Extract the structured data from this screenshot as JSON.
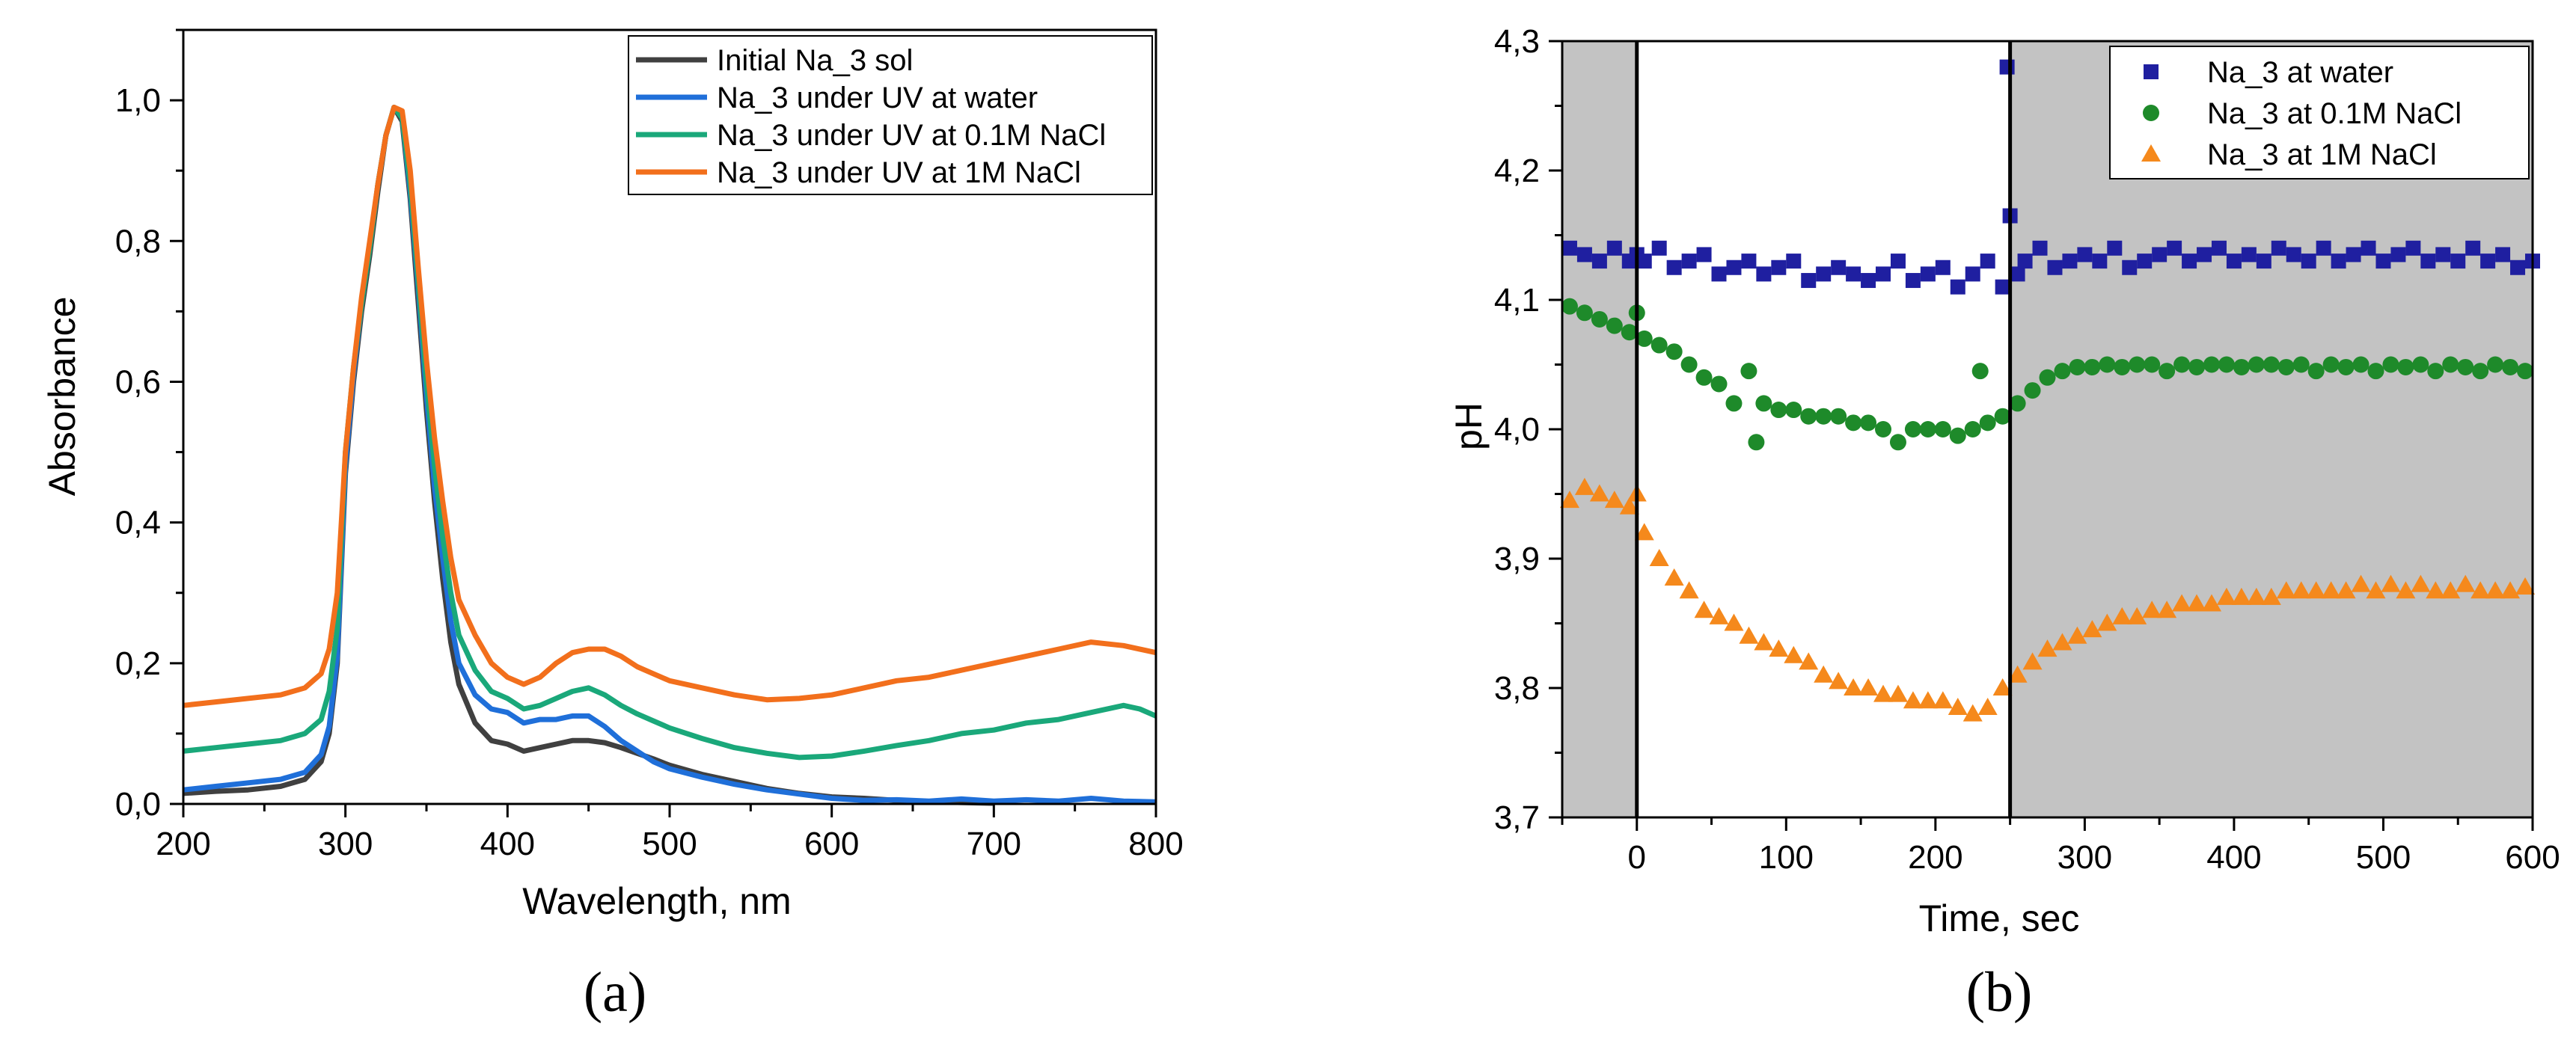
{
  "chart_data": [
    {
      "type": "line",
      "panel_label": "(a)",
      "xlabel": "Wavelength, nm",
      "ylabel": "Absorbance",
      "xlim": [
        200,
        800
      ],
      "ylim": [
        0,
        1.1
      ],
      "xticks": [
        "200",
        "300",
        "400",
        "500",
        "600",
        "700",
        "800"
      ],
      "yticks": [
        "0,0",
        "0,2",
        "0,4",
        "0,6",
        "0,8",
        "1,0"
      ],
      "legend_position": "top-right",
      "series": [
        {
          "name": "Initial Na_3 sol",
          "color": "#404040",
          "x": [
            200,
            220,
            240,
            260,
            275,
            285,
            290,
            295,
            300,
            305,
            310,
            315,
            320,
            325,
            330,
            335,
            340,
            345,
            350,
            355,
            360,
            365,
            370,
            380,
            390,
            400,
            410,
            420,
            430,
            440,
            450,
            460,
            470,
            480,
            490,
            500,
            520,
            540,
            560,
            580,
            600,
            620,
            640,
            660,
            680,
            700
          ],
          "y": [
            0.015,
            0.018,
            0.02,
            0.025,
            0.035,
            0.06,
            0.1,
            0.2,
            0.47,
            0.6,
            0.7,
            0.78,
            0.87,
            0.95,
            0.99,
            0.97,
            0.86,
            0.71,
            0.56,
            0.43,
            0.32,
            0.23,
            0.17,
            0.115,
            0.09,
            0.085,
            0.075,
            0.08,
            0.085,
            0.09,
            0.09,
            0.087,
            0.08,
            0.072,
            0.064,
            0.055,
            0.042,
            0.032,
            0.022,
            0.015,
            0.01,
            0.008,
            0.005,
            0.003,
            0.002,
            0.001
          ]
        },
        {
          "name": "Na_3 under UV at water",
          "color": "#1f6fd9",
          "x": [
            200,
            220,
            240,
            260,
            275,
            285,
            290,
            295,
            300,
            305,
            310,
            315,
            320,
            325,
            330,
            335,
            340,
            345,
            350,
            355,
            360,
            365,
            370,
            380,
            390,
            400,
            410,
            420,
            430,
            440,
            450,
            460,
            470,
            480,
            490,
            500,
            520,
            540,
            560,
            580,
            600,
            620,
            640,
            660,
            680,
            700,
            720,
            740,
            760,
            780,
            800
          ],
          "y": [
            0.02,
            0.025,
            0.03,
            0.035,
            0.045,
            0.07,
            0.11,
            0.21,
            0.48,
            0.61,
            0.71,
            0.79,
            0.88,
            0.95,
            0.99,
            0.975,
            0.87,
            0.73,
            0.58,
            0.45,
            0.35,
            0.26,
            0.2,
            0.155,
            0.135,
            0.13,
            0.115,
            0.12,
            0.12,
            0.125,
            0.125,
            0.11,
            0.09,
            0.075,
            0.06,
            0.05,
            0.038,
            0.028,
            0.02,
            0.014,
            0.008,
            0.005,
            0.006,
            0.004,
            0.007,
            0.004,
            0.006,
            0.004,
            0.008,
            0.004,
            0.003
          ]
        },
        {
          "name": "Na_3 under UV at 0.1M NaCl",
          "color": "#1aa87a",
          "x": [
            200,
            220,
            240,
            260,
            275,
            285,
            290,
            295,
            300,
            305,
            310,
            315,
            320,
            325,
            330,
            335,
            340,
            345,
            350,
            355,
            360,
            365,
            370,
            380,
            390,
            400,
            410,
            420,
            430,
            440,
            450,
            460,
            470,
            480,
            490,
            500,
            520,
            540,
            560,
            580,
            600,
            620,
            640,
            660,
            680,
            700,
            720,
            740,
            760,
            780,
            790,
            800
          ],
          "y": [
            0.075,
            0.08,
            0.085,
            0.09,
            0.1,
            0.12,
            0.16,
            0.25,
            0.5,
            0.62,
            0.71,
            0.79,
            0.88,
            0.95,
            0.99,
            0.975,
            0.88,
            0.74,
            0.6,
            0.48,
            0.38,
            0.3,
            0.24,
            0.19,
            0.16,
            0.15,
            0.135,
            0.14,
            0.15,
            0.16,
            0.165,
            0.155,
            0.14,
            0.128,
            0.118,
            0.108,
            0.093,
            0.08,
            0.072,
            0.066,
            0.068,
            0.075,
            0.083,
            0.09,
            0.1,
            0.105,
            0.115,
            0.12,
            0.13,
            0.14,
            0.135,
            0.125
          ]
        },
        {
          "name": "Na_3 under UV at 1M NaCl",
          "color": "#f26f1c",
          "x": [
            200,
            220,
            240,
            260,
            275,
            285,
            290,
            295,
            300,
            305,
            310,
            315,
            320,
            325,
            330,
            335,
            340,
            345,
            350,
            355,
            360,
            365,
            370,
            380,
            390,
            400,
            410,
            420,
            430,
            440,
            450,
            460,
            470,
            480,
            490,
            500,
            520,
            540,
            560,
            580,
            600,
            620,
            640,
            660,
            680,
            700,
            720,
            740,
            760,
            780,
            800
          ],
          "y": [
            0.14,
            0.145,
            0.15,
            0.155,
            0.165,
            0.185,
            0.22,
            0.3,
            0.5,
            0.62,
            0.72,
            0.8,
            0.88,
            0.95,
            0.99,
            0.985,
            0.9,
            0.76,
            0.63,
            0.52,
            0.43,
            0.35,
            0.29,
            0.24,
            0.2,
            0.18,
            0.17,
            0.18,
            0.2,
            0.215,
            0.22,
            0.22,
            0.21,
            0.195,
            0.185,
            0.175,
            0.165,
            0.155,
            0.148,
            0.15,
            0.155,
            0.165,
            0.175,
            0.18,
            0.19,
            0.2,
            0.21,
            0.22,
            0.23,
            0.225,
            0.215
          ]
        }
      ]
    },
    {
      "type": "scatter",
      "panel_label": "(b)",
      "xlabel": "Time, sec",
      "ylabel": "pH",
      "xlim": [
        -50,
        600
      ],
      "ylim": [
        3.7,
        4.3
      ],
      "xticks": [
        "0",
        "100",
        "200",
        "300",
        "400",
        "500",
        "600"
      ],
      "yticks": [
        "3,7",
        "3,8",
        "3,9",
        "4,0",
        "4,1",
        "4,2",
        "4,3"
      ],
      "legend_position": "top-right",
      "shaded_regions": [
        [
          -50,
          0
        ],
        [
          250,
          600
        ]
      ],
      "vertical_lines": [
        0,
        250
      ],
      "series": [
        {
          "name": "Na_3 at water",
          "color": "#1f1fa0",
          "marker": "square",
          "x": [
            -45,
            -35,
            -25,
            -15,
            -5,
            0,
            5,
            15,
            25,
            35,
            45,
            55,
            65,
            75,
            85,
            95,
            105,
            115,
            125,
            135,
            145,
            155,
            165,
            175,
            185,
            195,
            205,
            215,
            225,
            235,
            245,
            248,
            250,
            255,
            260,
            270,
            280,
            290,
            300,
            310,
            320,
            330,
            340,
            350,
            360,
            370,
            380,
            390,
            400,
            410,
            420,
            430,
            440,
            450,
            460,
            470,
            480,
            490,
            500,
            510,
            520,
            530,
            540,
            550,
            560,
            570,
            580,
            590,
            600
          ],
          "y": [
            4.14,
            4.135,
            4.13,
            4.14,
            4.13,
            4.135,
            4.13,
            4.14,
            4.125,
            4.13,
            4.135,
            4.12,
            4.125,
            4.13,
            4.12,
            4.125,
            4.13,
            4.115,
            4.12,
            4.125,
            4.12,
            4.115,
            4.12,
            4.13,
            4.115,
            4.12,
            4.125,
            4.11,
            4.12,
            4.13,
            4.11,
            4.28,
            4.165,
            4.12,
            4.13,
            4.14,
            4.125,
            4.13,
            4.135,
            4.13,
            4.14,
            4.125,
            4.13,
            4.135,
            4.14,
            4.13,
            4.135,
            4.14,
            4.13,
            4.135,
            4.13,
            4.14,
            4.135,
            4.13,
            4.14,
            4.13,
            4.135,
            4.14,
            4.13,
            4.135,
            4.14,
            4.13,
            4.135,
            4.13,
            4.14,
            4.13,
            4.135,
            4.125,
            4.13
          ]
        },
        {
          "name": "Na_3 at 0.1M NaCl",
          "color": "#1e8a2a",
          "marker": "circle",
          "x": [
            -45,
            -35,
            -25,
            -15,
            -5,
            0,
            5,
            15,
            25,
            35,
            45,
            55,
            65,
            75,
            80,
            85,
            95,
            105,
            115,
            125,
            135,
            145,
            155,
            165,
            175,
            185,
            195,
            205,
            215,
            225,
            230,
            235,
            245,
            255,
            265,
            275,
            285,
            295,
            305,
            315,
            325,
            335,
            345,
            355,
            365,
            375,
            385,
            395,
            405,
            415,
            425,
            435,
            445,
            455,
            465,
            475,
            485,
            495,
            505,
            515,
            525,
            535,
            545,
            555,
            565,
            575,
            585,
            595
          ],
          "y": [
            4.095,
            4.09,
            4.085,
            4.08,
            4.075,
            4.09,
            4.07,
            4.065,
            4.06,
            4.05,
            4.04,
            4.035,
            4.02,
            4.045,
            3.99,
            4.02,
            4.015,
            4.015,
            4.01,
            4.01,
            4.01,
            4.005,
            4.005,
            4.0,
            3.99,
            4.0,
            4.0,
            4.0,
            3.995,
            4.0,
            4.045,
            4.005,
            4.01,
            4.02,
            4.03,
            4.04,
            4.045,
            4.048,
            4.048,
            4.05,
            4.048,
            4.05,
            4.05,
            4.045,
            4.05,
            4.048,
            4.05,
            4.05,
            4.048,
            4.05,
            4.05,
            4.048,
            4.05,
            4.045,
            4.05,
            4.048,
            4.05,
            4.045,
            4.05,
            4.048,
            4.05,
            4.045,
            4.05,
            4.048,
            4.045,
            4.05,
            4.048,
            4.045
          ]
        },
        {
          "name": "Na_3 at 1M NaCl",
          "color": "#f5891c",
          "marker": "triangle",
          "x": [
            -45,
            -35,
            -25,
            -15,
            -5,
            0,
            5,
            15,
            25,
            35,
            45,
            55,
            65,
            75,
            85,
            95,
            105,
            115,
            125,
            135,
            145,
            155,
            165,
            175,
            185,
            195,
            205,
            215,
            225,
            235,
            245,
            255,
            265,
            275,
            285,
            295,
            305,
            315,
            325,
            335,
            345,
            355,
            365,
            375,
            385,
            395,
            405,
            415,
            425,
            435,
            445,
            455,
            465,
            475,
            485,
            495,
            505,
            515,
            525,
            535,
            545,
            555,
            565,
            575,
            585,
            595
          ],
          "y": [
            3.945,
            3.955,
            3.95,
            3.945,
            3.94,
            3.95,
            3.92,
            3.9,
            3.885,
            3.875,
            3.86,
            3.855,
            3.85,
            3.84,
            3.835,
            3.83,
            3.825,
            3.82,
            3.81,
            3.805,
            3.8,
            3.8,
            3.795,
            3.795,
            3.79,
            3.79,
            3.79,
            3.785,
            3.78,
            3.785,
            3.8,
            3.81,
            3.82,
            3.83,
            3.835,
            3.84,
            3.845,
            3.85,
            3.855,
            3.855,
            3.86,
            3.86,
            3.865,
            3.865,
            3.865,
            3.87,
            3.87,
            3.87,
            3.87,
            3.875,
            3.875,
            3.875,
            3.875,
            3.875,
            3.88,
            3.875,
            3.88,
            3.875,
            3.88,
            3.875,
            3.875,
            3.88,
            3.875,
            3.875,
            3.875,
            3.878
          ]
        }
      ]
    }
  ]
}
